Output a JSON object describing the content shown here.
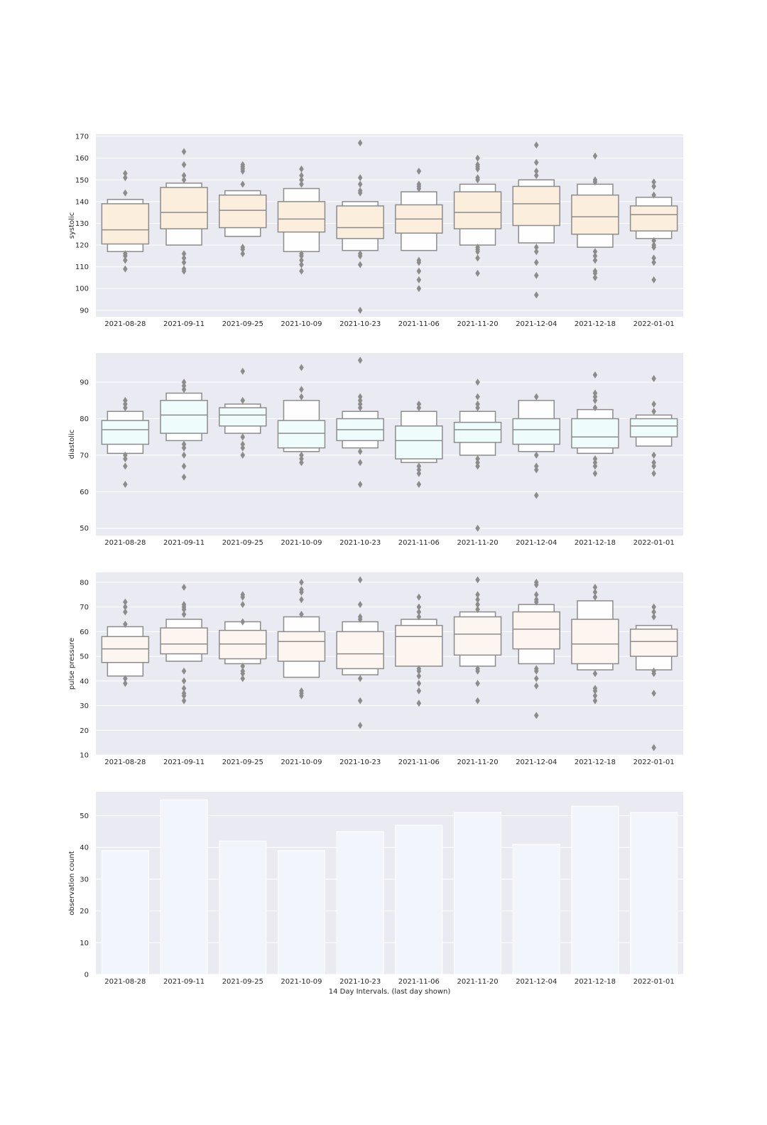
{
  "chart_data": [
    {
      "type": "boxen",
      "ylabel": "systolic",
      "xlabel": "",
      "ylim": [
        87,
        171
      ],
      "yticks": [
        90,
        100,
        110,
        120,
        130,
        140,
        150,
        160,
        170
      ],
      "grid": true,
      "fill_color": "#fbeedd",
      "line_color": "#8c8c8c",
      "categories": [
        "2021-08-28",
        "2021-09-11",
        "2021-09-25",
        "2021-10-09",
        "2021-10-23",
        "2021-11-06",
        "2021-11-20",
        "2021-12-04",
        "2021-12-18",
        "2022-01-01"
      ],
      "boxes": [
        {
          "median": 127,
          "q1": 120.5,
          "q3": 139,
          "o1": 117,
          "o3": 141,
          "outliers": [
            109,
            113,
            115,
            116,
            144,
            151,
            153
          ]
        },
        {
          "median": 135,
          "q1": 127.5,
          "q3": 146.5,
          "o1": 120,
          "o3": 148.5,
          "outliers": [
            108,
            109,
            112,
            114,
            116,
            150,
            152,
            157,
            163
          ]
        },
        {
          "median": 136,
          "q1": 128,
          "q3": 143,
          "o1": 124,
          "o3": 145,
          "outliers": [
            116,
            118,
            119,
            148,
            154,
            155,
            156,
            157
          ]
        },
        {
          "median": 132,
          "q1": 126,
          "q3": 140,
          "o1": 117,
          "o3": 146,
          "outliers": [
            108,
            111,
            113,
            115,
            116,
            148,
            150,
            152,
            155
          ]
        },
        {
          "median": 128,
          "q1": 123,
          "q3": 138,
          "o1": 117.5,
          "o3": 140,
          "outliers": [
            90,
            111,
            115,
            116,
            144,
            145,
            148,
            151,
            167
          ]
        },
        {
          "median": 132,
          "q1": 125.5,
          "q3": 138.5,
          "o1": 117.5,
          "o3": 144.5,
          "outliers": [
            100,
            104,
            108,
            112,
            113,
            146,
            147,
            148,
            154
          ]
        },
        {
          "median": 135,
          "q1": 127.5,
          "q3": 144.5,
          "o1": 120,
          "o3": 148,
          "outliers": [
            107,
            114,
            117,
            118,
            119,
            150,
            151,
            155,
            156,
            157,
            160
          ]
        },
        {
          "median": 139,
          "q1": 129,
          "q3": 147,
          "o1": 121,
          "o3": 150,
          "outliers": [
            97,
            106,
            112,
            117,
            119,
            152,
            154,
            158,
            166
          ]
        },
        {
          "median": 133,
          "q1": 125,
          "q3": 143,
          "o1": 119,
          "o3": 148,
          "outliers": [
            105,
            107,
            108,
            113,
            115,
            117,
            149,
            150,
            161
          ]
        },
        {
          "median": 134,
          "q1": 126.5,
          "q3": 138,
          "o1": 123,
          "o3": 142,
          "outliers": [
            104,
            112,
            114,
            119,
            120,
            122,
            143,
            147,
            149
          ]
        }
      ]
    },
    {
      "type": "boxen",
      "ylabel": "diastolic",
      "xlabel": "",
      "ylim": [
        48,
        98
      ],
      "yticks": [
        50,
        60,
        70,
        80,
        90
      ],
      "grid": true,
      "fill_color": "#effcfc",
      "line_color": "#8c8c8c",
      "categories": [
        "2021-08-28",
        "2021-09-11",
        "2021-09-25",
        "2021-10-09",
        "2021-10-23",
        "2021-11-06",
        "2021-11-20",
        "2021-12-04",
        "2021-12-18",
        "2022-01-01"
      ],
      "boxes": [
        {
          "median": 77,
          "q1": 73,
          "q3": 79.5,
          "o1": 70.5,
          "o3": 82,
          "outliers": [
            62,
            67,
            69,
            70,
            83,
            84,
            85
          ]
        },
        {
          "median": 81,
          "q1": 76,
          "q3": 85,
          "o1": 74,
          "o3": 87,
          "outliers": [
            64,
            67,
            70,
            72,
            73,
            88,
            89,
            90
          ]
        },
        {
          "median": 81,
          "q1": 78,
          "q3": 83,
          "o1": 76,
          "o3": 84,
          "outliers": [
            70,
            72,
            73,
            75,
            85,
            93
          ]
        },
        {
          "median": 76,
          "q1": 72,
          "q3": 79.5,
          "o1": 71,
          "o3": 85,
          "outliers": [
            68,
            69,
            70,
            86,
            88,
            94
          ]
        },
        {
          "median": 77,
          "q1": 74,
          "q3": 80,
          "o1": 72,
          "o3": 82,
          "outliers": [
            62,
            68,
            71,
            83,
            84,
            85,
            86,
            96
          ]
        },
        {
          "median": 74,
          "q1": 69,
          "q3": 78,
          "o1": 68,
          "o3": 82,
          "outliers": [
            62,
            65,
            66,
            67,
            83,
            84
          ]
        },
        {
          "median": 77,
          "q1": 73.5,
          "q3": 79,
          "o1": 70,
          "o3": 82,
          "outliers": [
            50,
            67,
            68,
            69,
            83,
            84,
            86,
            90
          ]
        },
        {
          "median": 77,
          "q1": 73,
          "q3": 80,
          "o1": 71,
          "o3": 85,
          "outliers": [
            59,
            66,
            67,
            70,
            86
          ]
        },
        {
          "median": 75,
          "q1": 72,
          "q3": 80,
          "o1": 70.5,
          "o3": 82.5,
          "outliers": [
            65,
            67,
            68,
            69,
            83,
            85,
            86,
            87,
            92
          ]
        },
        {
          "median": 78,
          "q1": 75,
          "q3": 80,
          "o1": 72.5,
          "o3": 81,
          "outliers": [
            65,
            67,
            68,
            70,
            82,
            84,
            91
          ]
        }
      ]
    },
    {
      "type": "boxen",
      "ylabel": "pulse pressure",
      "xlabel": "",
      "ylim": [
        10,
        84
      ],
      "yticks": [
        10,
        20,
        30,
        40,
        50,
        60,
        70,
        80
      ],
      "grid": true,
      "fill_color": "#fdf5ef",
      "line_color": "#8c8c8c",
      "categories": [
        "2021-08-28",
        "2021-09-11",
        "2021-09-25",
        "2021-10-09",
        "2021-10-23",
        "2021-11-06",
        "2021-11-20",
        "2021-12-04",
        "2021-12-18",
        "2022-01-01"
      ],
      "boxes": [
        {
          "median": 53,
          "q1": 47.5,
          "q3": 58,
          "o1": 42,
          "o3": 62,
          "outliers": [
            39,
            41,
            63,
            68,
            70,
            72
          ]
        },
        {
          "median": 55,
          "q1": 51,
          "q3": 61.5,
          "o1": 48,
          "o3": 65,
          "outliers": [
            32,
            34,
            35,
            37,
            40,
            44,
            67,
            69,
            70,
            71,
            78
          ]
        },
        {
          "median": 55,
          "q1": 49,
          "q3": 60.5,
          "o1": 47,
          "o3": 64,
          "outliers": [
            41,
            43,
            44,
            46,
            64,
            71,
            74,
            75
          ]
        },
        {
          "median": 56,
          "q1": 48,
          "q3": 60,
          "o1": 41.5,
          "o3": 66,
          "outliers": [
            34,
            35,
            36,
            67,
            73,
            76,
            77,
            80
          ]
        },
        {
          "median": 51,
          "q1": 45,
          "q3": 60,
          "o1": 42.5,
          "o3": 64,
          "outliers": [
            22,
            32,
            41,
            65,
            66,
            71,
            81
          ]
        },
        {
          "median": 58,
          "q1": 46,
          "q3": 62.5,
          "o1": 52.5,
          "o3": 65,
          "outliers": [
            31,
            36,
            39,
            42,
            44,
            45,
            66,
            68,
            70,
            74
          ]
        },
        {
          "median": 59,
          "q1": 50.5,
          "q3": 66,
          "o1": 46,
          "o3": 68,
          "outliers": [
            32,
            39,
            44,
            45,
            69,
            71,
            73,
            75,
            81
          ]
        },
        {
          "median": 61,
          "q1": 53,
          "q3": 68,
          "o1": 47,
          "o3": 71,
          "outliers": [
            26,
            38,
            41,
            44,
            45,
            72,
            73,
            75,
            79,
            80
          ]
        },
        {
          "median": 55,
          "q1": 47,
          "q3": 65,
          "o1": 44.5,
          "o3": 72.5,
          "outliers": [
            32,
            34,
            36,
            37,
            43,
            74,
            76,
            78
          ]
        },
        {
          "median": 56,
          "q1": 50,
          "q3": 61,
          "o1": 44.5,
          "o3": 62.5,
          "outliers": [
            13,
            35,
            43,
            44,
            66,
            68,
            70
          ]
        }
      ]
    },
    {
      "type": "bar",
      "ylabel": "observation count",
      "xlabel": "14 Day Intervals. (last day shown)",
      "ylim": [
        0,
        57.5
      ],
      "yticks": [
        0,
        10,
        20,
        30,
        40,
        50
      ],
      "grid": true,
      "bar_color": "#f2f6fc",
      "categories": [
        "2021-08-28",
        "2021-09-11",
        "2021-09-25",
        "2021-10-09",
        "2021-10-23",
        "2021-11-06",
        "2021-11-20",
        "2021-12-04",
        "2021-12-18",
        "2022-01-01"
      ],
      "values": [
        39,
        55,
        42,
        39,
        45,
        47,
        51,
        41,
        53,
        51
      ]
    }
  ]
}
